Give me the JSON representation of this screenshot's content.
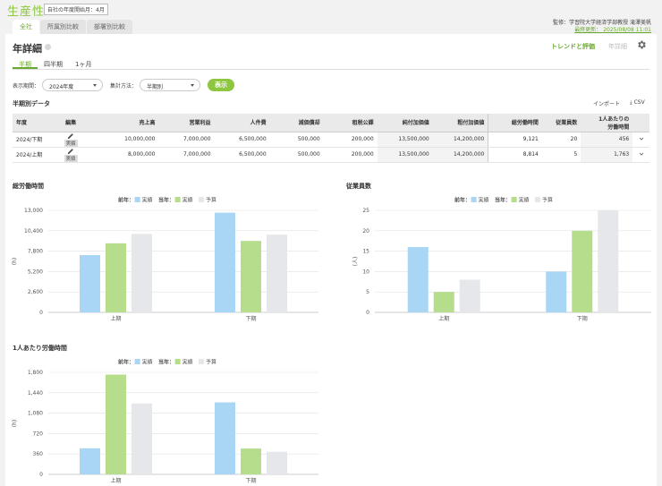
{
  "app": {
    "title": "生産性",
    "fiscal_year_badge": "自社の年度開始月：4月"
  },
  "main_tabs": [
    {
      "label": "全社",
      "active": true
    },
    {
      "label": "所属別比較",
      "active": false
    },
    {
      "label": "部署別比較",
      "active": false
    }
  ],
  "header": {
    "supervisor": "監修：学習院大学経済学部教授 滝澤美帆",
    "updated": "最終更新： 2025/08/08 11:01"
  },
  "page": {
    "title": "年詳細",
    "trend_link": "トレンドと評価",
    "year_link": "年詳細"
  },
  "period_tabs": [
    {
      "label": "半期",
      "active": true
    },
    {
      "label": "四半期",
      "active": false
    },
    {
      "label": "1ヶ月",
      "active": false
    }
  ],
  "filters": {
    "period_label": "表示期間：",
    "period_value": "2024年度",
    "method_label": "集計方法：",
    "method_value": "半期別",
    "show_button": "表示"
  },
  "table": {
    "title": "半期別データ",
    "import_label": "インポート",
    "csv_label": "CSV",
    "columns": [
      "年度",
      "編集",
      "売上高",
      "営業利益",
      "人件費",
      "減価償却",
      "租税公課",
      "純付加価値",
      "粗付加価値",
      "総労働時間",
      "従業員数",
      "1人あたりの",
      "労働時間"
    ],
    "rows": [
      {
        "period": "2024/下期",
        "status": "実績",
        "sales": "10,000,000",
        "op_profit": "7,000,000",
        "personnel": "6,500,000",
        "depreciation": "500,000",
        "taxes": "200,000",
        "net_va": "13,500,000",
        "gross_va": "14,200,000",
        "hours": "9,121",
        "employees": "20",
        "per_person": "456"
      },
      {
        "period": "2024/上期",
        "status": "実績",
        "sales": "8,000,000",
        "op_profit": "7,000,000",
        "personnel": "6,500,000",
        "depreciation": "500,000",
        "taxes": "200,000",
        "net_va": "13,500,000",
        "gross_va": "14,200,000",
        "hours": "8,814",
        "employees": "5",
        "per_person": "1,763"
      }
    ]
  },
  "legend": {
    "prev_label": "前年：",
    "curr_label": "当年：",
    "actual": "実績",
    "budget": "予算"
  },
  "colors": {
    "prev_actual": "#a9d6f5",
    "curr_actual": "#b5dd8c",
    "curr_budget": "#e6e7ea",
    "accent": "#8dc63f"
  },
  "chart_data": [
    {
      "type": "bar",
      "title": "総労働時間",
      "ylabel": "(h)",
      "categories": [
        "上期",
        "下期"
      ],
      "ylim": [
        0,
        13000
      ],
      "yticks": [
        "0",
        "2,600",
        "5,200",
        "7,800",
        "10,400",
        "13,000"
      ],
      "ytick_values": [
        0,
        2600,
        5200,
        7800,
        10400,
        13000
      ],
      "series": [
        {
          "name": "前年 実績",
          "values": [
            7300,
            12700
          ]
        },
        {
          "name": "当年 実績",
          "values": [
            8800,
            9100
          ]
        },
        {
          "name": "当年 予算",
          "values": [
            10000,
            9900
          ]
        }
      ]
    },
    {
      "type": "bar",
      "title": "従業員数",
      "ylabel": "(人)",
      "categories": [
        "上期",
        "下期"
      ],
      "ylim": [
        0,
        25
      ],
      "yticks": [
        "0",
        "5",
        "10",
        "15",
        "20",
        "25"
      ],
      "ytick_values": [
        0,
        5,
        10,
        15,
        20,
        25
      ],
      "series": [
        {
          "name": "前年 実績",
          "values": [
            16,
            10
          ]
        },
        {
          "name": "当年 実績",
          "values": [
            5,
            20
          ]
        },
        {
          "name": "当年 予算",
          "values": [
            8,
            25
          ]
        }
      ]
    },
    {
      "type": "bar",
      "title": "1人あたり労働時間",
      "ylabel": "(h)",
      "categories": [
        "上期",
        "下期"
      ],
      "ylim": [
        0,
        1800
      ],
      "yticks": [
        "0",
        "360",
        "720",
        "1,080",
        "1,440",
        "1,800"
      ],
      "ytick_values": [
        0,
        360,
        720,
        1080,
        1440,
        1800
      ],
      "series": [
        {
          "name": "前年 実績",
          "values": [
            460,
            1270
          ]
        },
        {
          "name": "当年 実績",
          "values": [
            1760,
            456
          ]
        },
        {
          "name": "当年 予算",
          "values": [
            1250,
            400
          ]
        }
      ]
    }
  ]
}
